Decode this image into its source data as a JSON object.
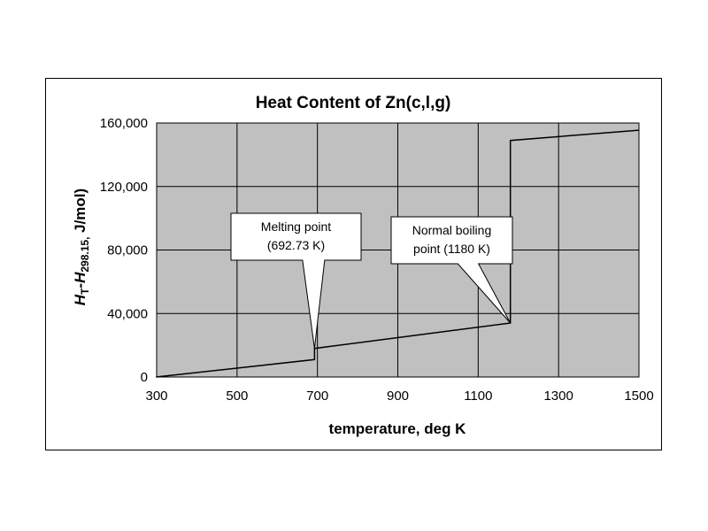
{
  "chart_data": {
    "type": "line",
    "title": "Heat Content of Zn(c,l,g)",
    "xlabel": "temperature, deg K",
    "ylabel": {
      "h1": "H",
      "s1": "T",
      "dash": "-",
      "h2": "H",
      "s2": "298.15,",
      "unit": " J/mol)"
    },
    "xlim": [
      300,
      1500
    ],
    "ylim": [
      0,
      160000
    ],
    "x_ticks": [
      "300",
      "500",
      "700",
      "900",
      "1100",
      "1300",
      "1500"
    ],
    "y_ticks": [
      "0",
      "40,000",
      "80,000",
      "120,000",
      "160,000"
    ],
    "x_tick_values": [
      300,
      500,
      700,
      900,
      1100,
      1300,
      1500
    ],
    "y_tick_values": [
      0,
      40000,
      80000,
      120000,
      160000
    ],
    "grid": true,
    "plot_background": "#c0c0c0",
    "line_color": "#000000",
    "series": [
      {
        "x": [
          298.15,
          692.73,
          692.73,
          1180,
          1180,
          1500
        ],
        "y": [
          0,
          11000,
          18000,
          34000,
          149000,
          155500
        ]
      }
    ],
    "annotations": [
      {
        "lines": [
          "Melting point",
          "(692.73 K)"
        ],
        "x": 692.73,
        "y": 18000
      },
      {
        "lines": [
          "Normal boiling",
          "point (1180 K)"
        ],
        "x": 1180,
        "y": 34000
      }
    ]
  }
}
